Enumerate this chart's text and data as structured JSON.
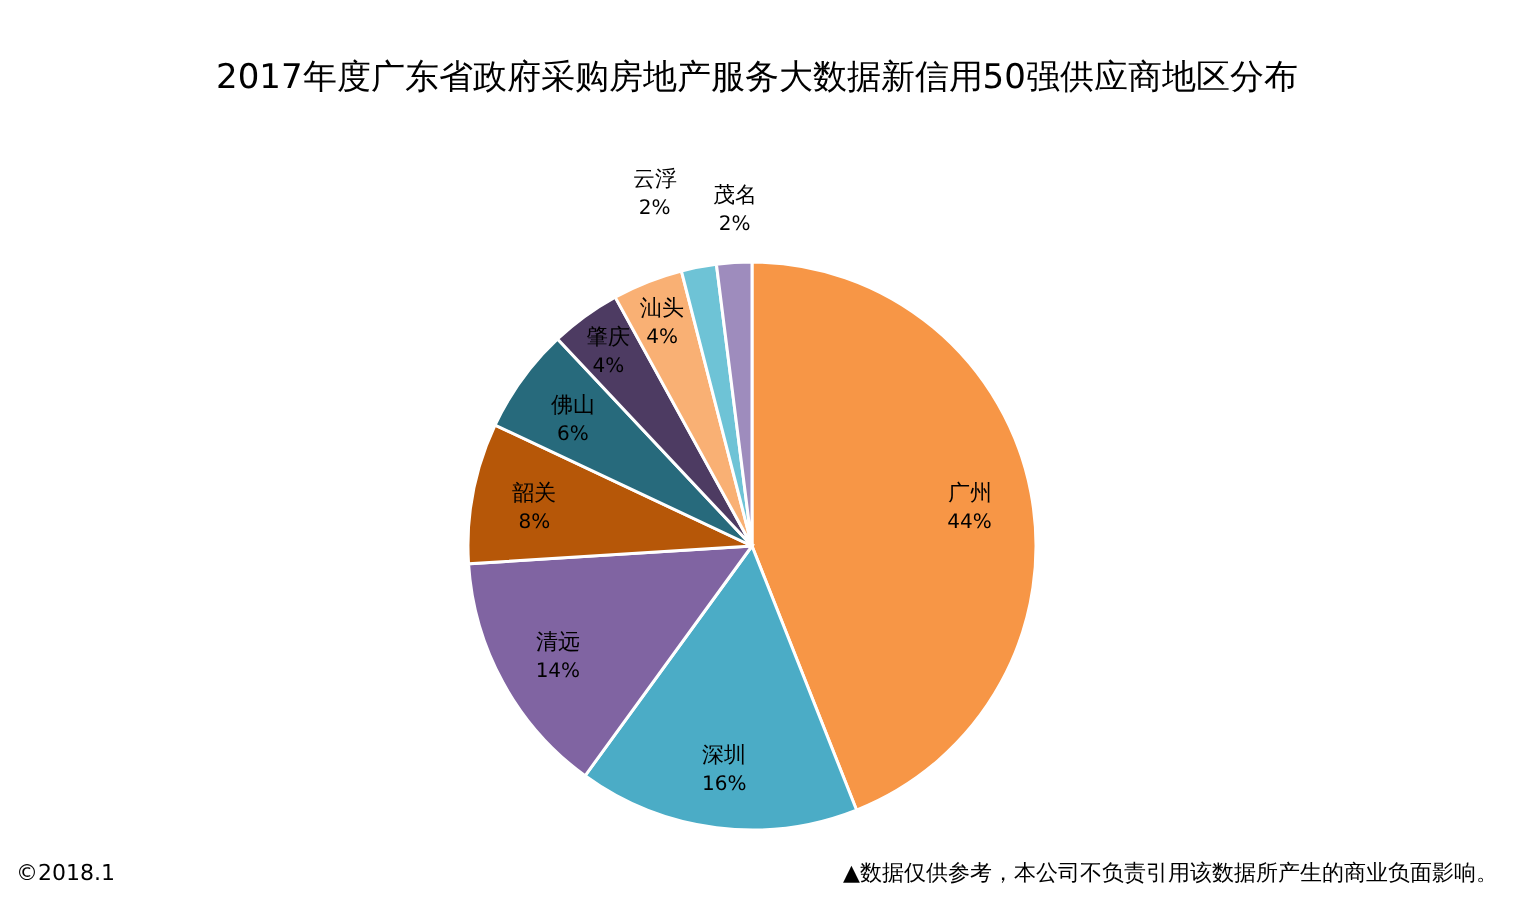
{
  "chart_data": {
    "type": "pie",
    "title": "2017年度广东省政府采购房地产服务大数据新信用50强供应商地区分布",
    "categories": [
      "广州",
      "深圳",
      "清远",
      "韶关",
      "佛山",
      "肇庆",
      "汕头",
      "云浮",
      "茂名"
    ],
    "values": [
      44,
      16,
      14,
      8,
      6,
      4,
      4,
      2,
      2
    ],
    "colors": [
      "#f79646",
      "#4bacc6",
      "#8064a2",
      "#b65708",
      "#276a7c",
      "#4d3b62",
      "#f9b074",
      "#6ec3d6",
      "#9e8cbd"
    ],
    "value_labels": [
      "44%",
      "16%",
      "14%",
      "8%",
      "6%",
      "4%",
      "4%",
      "2%",
      "2%"
    ],
    "annotations": [
      "©2018.1",
      "▲数据仅供参考，本公司不负责引用该数据所产生的商业负面影响。"
    ]
  }
}
